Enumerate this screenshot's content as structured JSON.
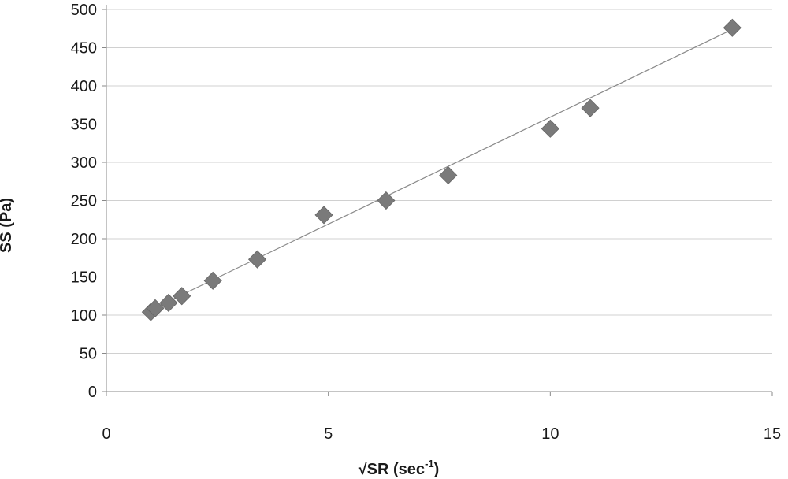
{
  "chart_data": {
    "type": "scatter",
    "xlabel": "√SR (sec",
    "xlabel_superscript": "-1",
    "xlabel_close": ")",
    "ylabel": "SS (Pa)",
    "xlim": [
      0,
      15
    ],
    "ylim": [
      0,
      500
    ],
    "x_ticks": [
      0,
      5,
      10,
      15
    ],
    "y_ticks": [
      0,
      50,
      100,
      150,
      200,
      250,
      300,
      350,
      400,
      450,
      500
    ],
    "grid": "horizontal",
    "marker": "diamond",
    "marker_color": "#7a7a7a",
    "trendline": {
      "type": "linear",
      "color": "#8a8a8a",
      "from": [
        1.0,
        107
      ],
      "to": [
        14.1,
        474
      ]
    },
    "points": [
      {
        "x": 1.0,
        "y": 104
      },
      {
        "x": 1.1,
        "y": 109
      },
      {
        "x": 1.4,
        "y": 116
      },
      {
        "x": 1.7,
        "y": 125
      },
      {
        "x": 2.4,
        "y": 145
      },
      {
        "x": 3.4,
        "y": 173
      },
      {
        "x": 4.9,
        "y": 231
      },
      {
        "x": 6.3,
        "y": 250
      },
      {
        "x": 7.7,
        "y": 283
      },
      {
        "x": 10.0,
        "y": 344
      },
      {
        "x": 10.9,
        "y": 371
      },
      {
        "x": 14.1,
        "y": 476
      }
    ]
  }
}
